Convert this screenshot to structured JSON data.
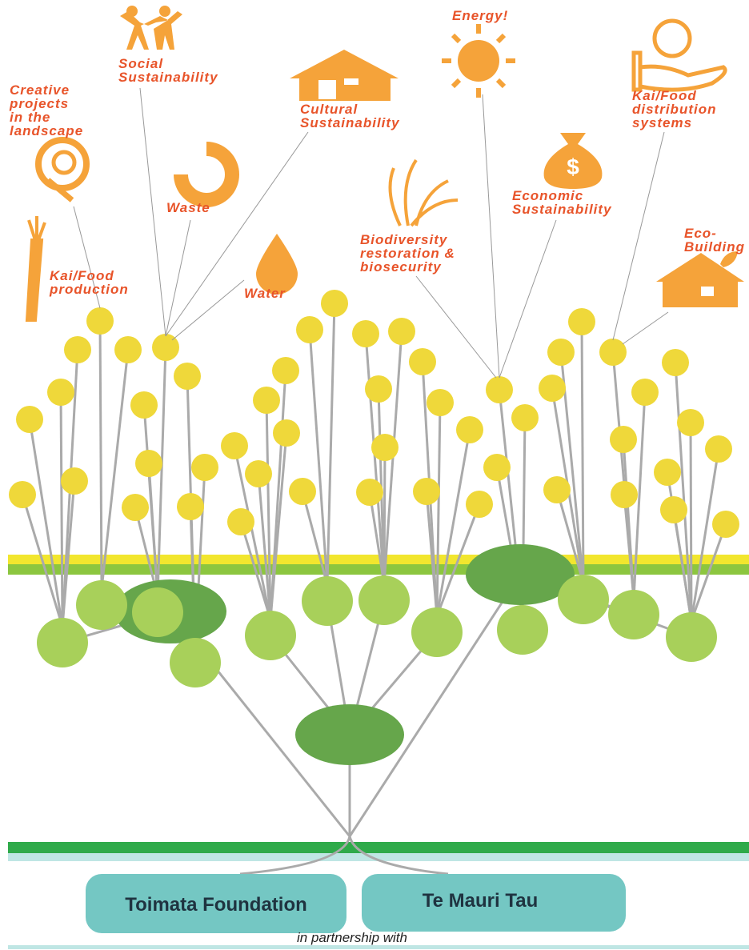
{
  "labels": [
    {
      "lines": [
        "Social",
        "Sustainability"
      ]
    },
    {
      "lines": [
        "Creative",
        "projects",
        "in the",
        "landscape"
      ]
    },
    {
      "lines": [
        "Cultural",
        "Sustainability"
      ]
    },
    {
      "lines": [
        "Waste"
      ]
    },
    {
      "lines": [
        "Water"
      ]
    },
    {
      "lines": [
        "Kai/Food",
        "production"
      ]
    },
    {
      "lines": [
        "Energy!"
      ]
    },
    {
      "lines": [
        "Kai/Food",
        "distribution",
        "systems"
      ]
    },
    {
      "lines": [
        "Economic",
        "Sustainability"
      ]
    },
    {
      "lines": [
        "Biodiversity",
        "restoration &",
        "biosecurity"
      ]
    },
    {
      "lines": [
        "Eco-",
        "Building"
      ]
    }
  ],
  "partners": [
    "Toimata Foundation",
    "Te Mauri Tau"
  ],
  "footer": "in partnership with"
}
